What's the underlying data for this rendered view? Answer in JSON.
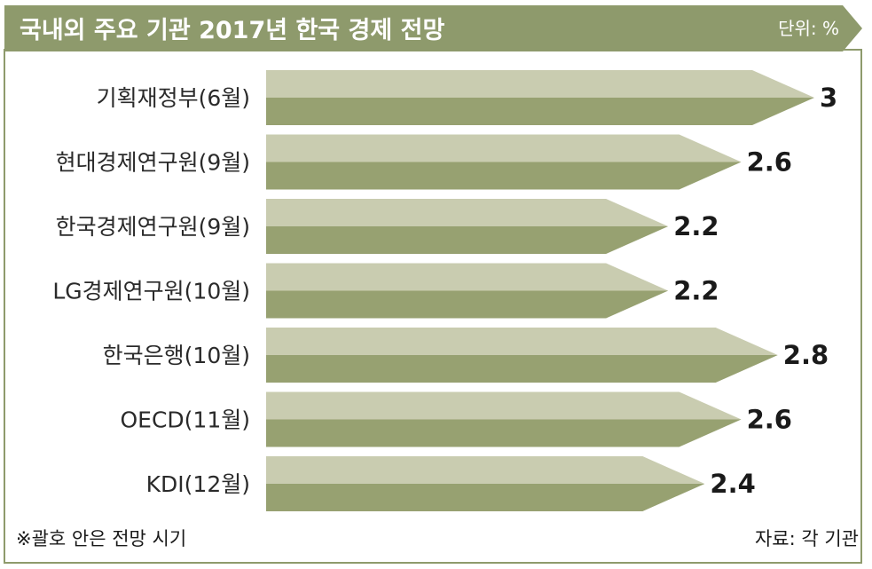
{
  "chart_data": {
    "type": "bar",
    "title": "국내외 주요 기관 2017년 한국 경제 전망",
    "unit": "단위: %",
    "categories": [
      "기획재정부(6월)",
      "현대경제연구원(9월)",
      "한국경제연구원(9월)",
      "LG경제연구원(10월)",
      "한국은행(10월)",
      "OECD(11월)",
      "KDI(12월)"
    ],
    "values": [
      3,
      2.6,
      2.2,
      2.2,
      2.8,
      2.6,
      2.4
    ],
    "value_labels": [
      "3",
      "2.6",
      "2.2",
      "2.2",
      "2.8",
      "2.6",
      "2.4"
    ],
    "xlim": [
      0,
      3
    ],
    "grid": false,
    "footnote": "※괄호 안은 전망 시기",
    "source": "자료: 각 기관"
  },
  "colors": {
    "header": "#8e9a6c",
    "bar_light": "#c9ccb0",
    "bar_dark": "#97a171",
    "border": "#8e9a6c"
  }
}
